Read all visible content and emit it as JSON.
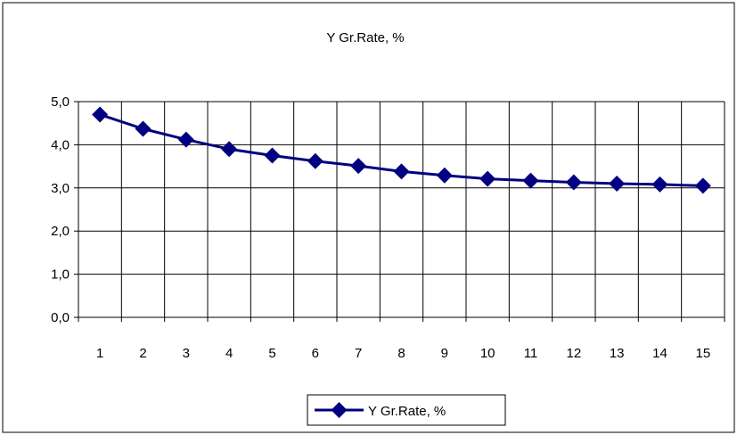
{
  "chart_data": {
    "type": "line",
    "title": "Y Gr.Rate, %",
    "xlabel": "",
    "ylabel": "",
    "categories": [
      "1",
      "2",
      "3",
      "4",
      "5",
      "6",
      "7",
      "8",
      "9",
      "10",
      "11",
      "12",
      "13",
      "14",
      "15"
    ],
    "series": [
      {
        "name": "Y Gr.Rate, %",
        "values": [
          4.7,
          4.37,
          4.12,
          3.9,
          3.75,
          3.62,
          3.51,
          3.38,
          3.29,
          3.21,
          3.17,
          3.13,
          3.1,
          3.08,
          3.05
        ],
        "color": "#000080",
        "marker": "diamond"
      }
    ],
    "ylim": [
      0,
      5
    ],
    "yticks": [
      "0,0",
      "1,0",
      "2,0",
      "3,0",
      "4,0",
      "5,0"
    ],
    "grid": true,
    "legend": "bottom-center"
  }
}
